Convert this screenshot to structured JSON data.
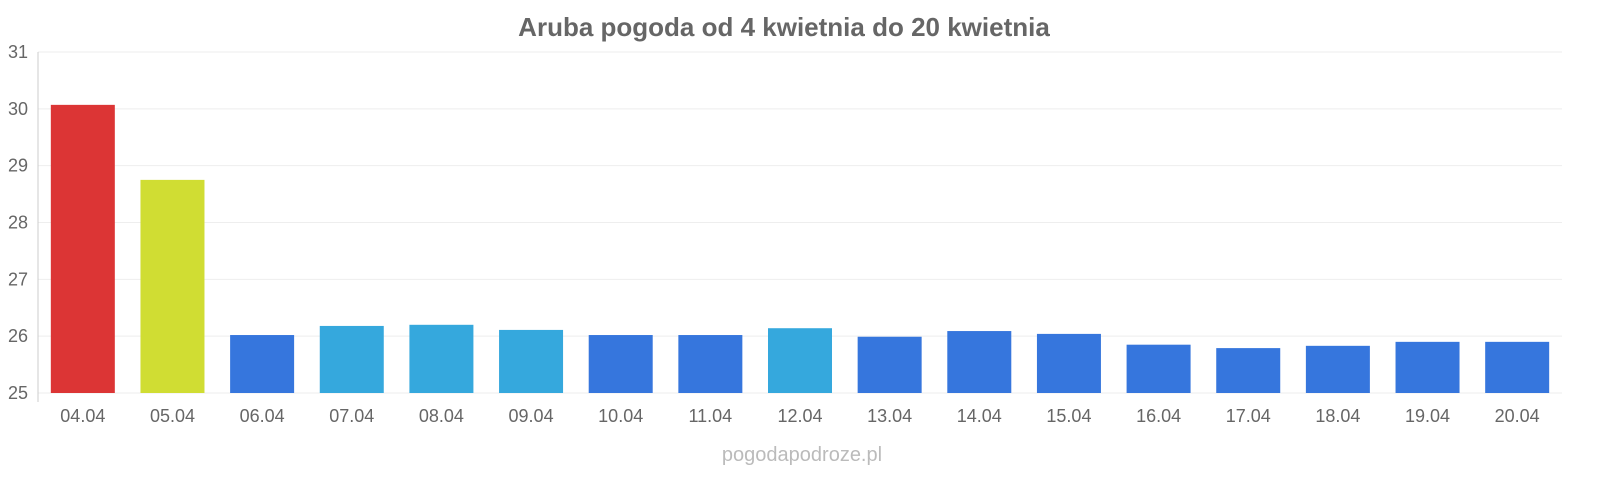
{
  "chart_data": {
    "type": "bar",
    "title": "Aruba pogoda od 4 kwietnia do 20 kwietnia",
    "xlabel": "",
    "ylabel": "",
    "ylim": [
      25,
      31
    ],
    "yticks": [
      25,
      26,
      27,
      28,
      29,
      30,
      31
    ],
    "grid": true,
    "categories": [
      "04.04",
      "05.04",
      "06.04",
      "07.04",
      "08.04",
      "09.04",
      "10.04",
      "11.04",
      "12.04",
      "13.04",
      "14.04",
      "15.04",
      "16.04",
      "17.04",
      "18.04",
      "19.04",
      "20.04"
    ],
    "values": [
      30.07,
      28.75,
      26.02,
      26.18,
      26.2,
      26.11,
      26.02,
      26.02,
      26.14,
      25.99,
      26.09,
      26.04,
      25.85,
      25.79,
      25.83,
      25.9,
      25.9
    ],
    "colors": [
      "#dc3535",
      "#d0dd33",
      "#3676dd",
      "#35a8dd",
      "#35a8dd",
      "#35a8dd",
      "#3676dd",
      "#3676dd",
      "#35a8dd",
      "#3676dd",
      "#3676dd",
      "#3676dd",
      "#3676dd",
      "#3676dd",
      "#3676dd",
      "#3676dd",
      "#3676dd"
    ],
    "credit": "pogodapodroze.pl"
  }
}
